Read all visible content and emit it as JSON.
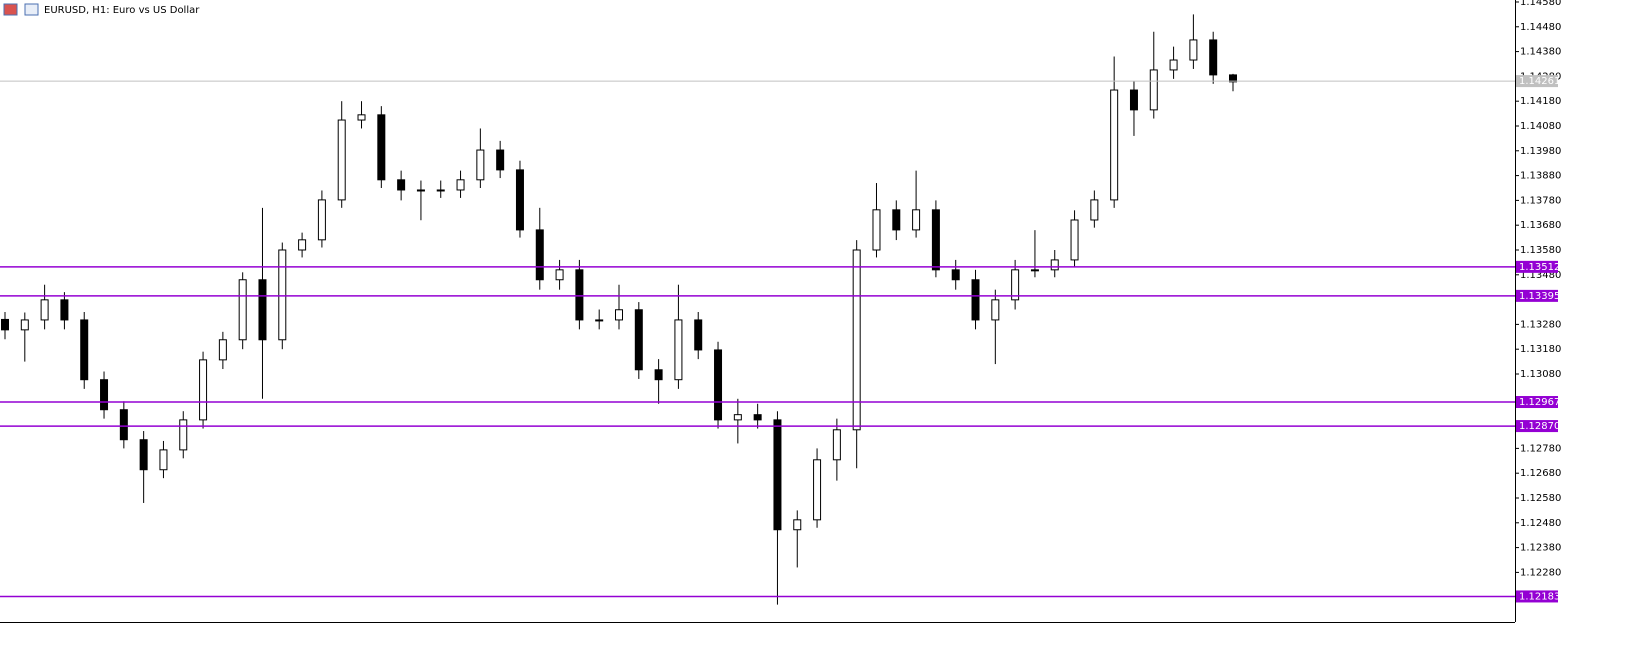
{
  "chart_data": {
    "type": "candlestick",
    "title": "EURUSD, H1:  Euro vs US Dollar",
    "open": [
      1.133,
      1.13258,
      1.13298,
      1.13379,
      1.13298,
      1.13057,
      1.12936,
      1.12815,
      1.12694,
      1.12774,
      1.12895,
      1.13137,
      1.13218,
      1.1346,
      1.13218,
      1.1358,
      1.13621,
      1.13782,
      1.14104,
      1.14125,
      1.13863,
      1.13822,
      1.13822,
      1.13822,
      1.13863,
      1.13983,
      1.13903,
      1.13661,
      1.1346,
      1.135,
      1.13298,
      1.13298,
      1.13339,
      1.13097,
      1.13057,
      1.13298,
      1.13177,
      1.12895,
      1.12916,
      1.12895,
      1.12452,
      1.12492,
      1.12734,
      1.12855,
      1.1358,
      1.13742,
      1.13661,
      1.13742,
      1.135,
      1.1346,
      1.13298,
      1.13379,
      1.135,
      1.135,
      1.1354,
      1.13701,
      1.13782,
      1.14225,
      1.14145,
      1.14306,
      1.14346,
      1.14427,
      1.14286
    ],
    "high": [
      1.1333,
      1.13328,
      1.1344,
      1.1341,
      1.1333,
      1.1309,
      1.1297,
      1.1285,
      1.1281,
      1.1293,
      1.1317,
      1.1325,
      1.1349,
      1.1375,
      1.1361,
      1.1365,
      1.1382,
      1.1418,
      1.1418,
      1.1416,
      1.139,
      1.1386,
      1.1386,
      1.139,
      1.1407,
      1.1402,
      1.1394,
      1.1375,
      1.1354,
      1.1354,
      1.1334,
      1.1344,
      1.1337,
      1.1314,
      1.1344,
      1.1333,
      1.1321,
      1.1298,
      1.1296,
      1.1293,
      1.1253,
      1.1278,
      1.129,
      1.1362,
      1.1385,
      1.1378,
      1.139,
      1.1378,
      1.1354,
      1.135,
      1.1342,
      1.1354,
      1.1366,
      1.1358,
      1.1374,
      1.1382,
      1.1436,
      1.1426,
      1.1446,
      1.144,
      1.1453,
      1.1446,
      1.1429
    ],
    "low": [
      1.1322,
      1.1313,
      1.1326,
      1.1326,
      1.1302,
      1.129,
      1.1278,
      1.1256,
      1.1266,
      1.1274,
      1.1286,
      1.131,
      1.1318,
      1.1298,
      1.1318,
      1.1355,
      1.1359,
      1.1375,
      1.1407,
      1.1383,
      1.1378,
      1.137,
      1.1379,
      1.1379,
      1.1383,
      1.1387,
      1.1363,
      1.1342,
      1.1342,
      1.1326,
      1.1326,
      1.1326,
      1.1306,
      1.1296,
      1.1302,
      1.1314,
      1.1286,
      1.128,
      1.1286,
      1.1215,
      1.123,
      1.1246,
      1.1265,
      1.127,
      1.1355,
      1.1362,
      1.1363,
      1.1347,
      1.1342,
      1.1326,
      1.1312,
      1.1334,
      1.1347,
      1.1347,
      1.1351,
      1.1367,
      1.1375,
      1.1404,
      1.1411,
      1.1427,
      1.1431,
      1.1425,
      1.1422
    ],
    "close": [
      1.13258,
      1.13298,
      1.13379,
      1.13298,
      1.13057,
      1.12936,
      1.12815,
      1.12694,
      1.12774,
      1.12895,
      1.13137,
      1.13218,
      1.1346,
      1.13218,
      1.1358,
      1.13621,
      1.13782,
      1.14104,
      1.14125,
      1.13863,
      1.13822,
      1.13822,
      1.13822,
      1.13863,
      1.13983,
      1.13903,
      1.13661,
      1.1346,
      1.135,
      1.13298,
      1.13298,
      1.13339,
      1.13097,
      1.13057,
      1.13298,
      1.13177,
      1.12895,
      1.12916,
      1.12895,
      1.12452,
      1.12492,
      1.12734,
      1.12855,
      1.1358,
      1.13742,
      1.13661,
      1.13742,
      1.135,
      1.1346,
      1.13298,
      1.13379,
      1.135,
      1.135,
      1.1354,
      1.13701,
      1.13782,
      1.14225,
      1.14145,
      1.14306,
      1.14346,
      1.14427,
      1.14286,
      1.14258
    ],
    "ylim": [
      1.1208,
      1.14588
    ],
    "yticks": [
      {
        "value": 1.1458,
        "label": "1.14580"
      },
      {
        "value": 1.1448,
        "label": "1.14480"
      },
      {
        "value": 1.1438,
        "label": "1.14380"
      },
      {
        "value": 1.1428,
        "label": "1.14280"
      },
      {
        "value": 1.1418,
        "label": "1.14180"
      },
      {
        "value": 1.1408,
        "label": "1.14080"
      },
      {
        "value": 1.1398,
        "label": "1.13980"
      },
      {
        "value": 1.1388,
        "label": "1.13880"
      },
      {
        "value": 1.1378,
        "label": "1.13780"
      },
      {
        "value": 1.1368,
        "label": "1.13680"
      },
      {
        "value": 1.1358,
        "label": "1.13580"
      },
      {
        "value": 1.1348,
        "label": "1.13480"
      },
      {
        "value": 1.1328,
        "label": "1.13280"
      },
      {
        "value": 1.1318,
        "label": "1.13180"
      },
      {
        "value": 1.1308,
        "label": "1.13080"
      },
      {
        "value": 1.1278,
        "label": "1.12780"
      },
      {
        "value": 1.1268,
        "label": "1.12680"
      },
      {
        "value": 1.1258,
        "label": "1.12580"
      },
      {
        "value": 1.1248,
        "label": "1.12480"
      },
      {
        "value": 1.1238,
        "label": "1.12380"
      },
      {
        "value": 1.1228,
        "label": "1.12280"
      }
    ],
    "levels": [
      1.13512,
      1.13395,
      1.12967,
      {
        "value": 1.1287,
        "label": "1.12870"
      },
      1.12183
    ],
    "level_color": "#9400d3",
    "current_price": 1.14261,
    "up_color": "#ffffff",
    "down_color": "#000000"
  }
}
